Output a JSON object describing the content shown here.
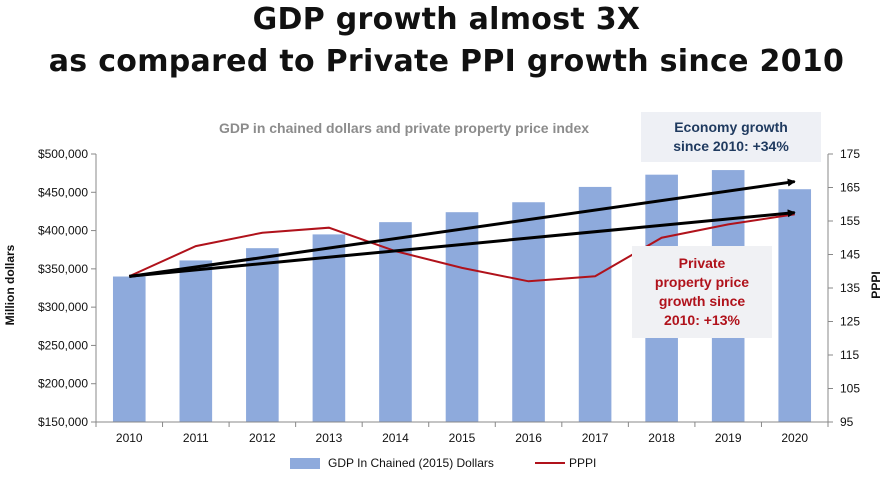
{
  "headline": {
    "line1": "GDP growth almost 3X",
    "line2": "as compared to Private PPI growth since 2010"
  },
  "chart_data": {
    "type": "bar",
    "title": "GDP in chained dollars and private property price index",
    "categories": [
      "2010",
      "2011",
      "2012",
      "2013",
      "2014",
      "2015",
      "2016",
      "2017",
      "2018",
      "2019",
      "2020"
    ],
    "series": [
      {
        "name": "GDP In Chained (2015) Dollars",
        "type": "bar",
        "axis": "left",
        "values": [
          340000,
          361000,
          377000,
          395000,
          411000,
          424000,
          437000,
          457000,
          473000,
          479000,
          454000
        ]
      },
      {
        "name": "PPPI",
        "type": "line",
        "axis": "right",
        "values": [
          138.5,
          147.5,
          151.5,
          153,
          146,
          141,
          137,
          138.5,
          150,
          154,
          157
        ]
      }
    ],
    "ylabel": "Million dollars",
    "ylim": [
      150000,
      500000
    ],
    "yticks": [
      "$500,000",
      "$450,000",
      "$400,000",
      "$350,000",
      "$300,000",
      "$250,000",
      "$200,000",
      "$150,000"
    ],
    "ylabel_right": "PPPI",
    "ylim_right": [
      95,
      175
    ],
    "yticks_right": [
      "175",
      "165",
      "155",
      "145",
      "135",
      "125",
      "115",
      "105",
      "95"
    ],
    "trend_arrows": [
      {
        "target": "GDP",
        "from_x": "2010",
        "from_y": 340000,
        "to_x": "2020",
        "to_y": 464000
      },
      {
        "target": "PPPI",
        "from_x": "2010",
        "from_y": 138.5,
        "to_x": "2020",
        "to_y": 157.5
      }
    ],
    "annotations": {
      "economy": [
        "Economy growth",
        "since 2010: +34%"
      ],
      "ppi": [
        "Private",
        "property price",
        "growth since",
        "2010: +13%"
      ]
    },
    "legend_position": "bottom",
    "grid": false
  },
  "colors": {
    "bar": "#8eaadc",
    "ppi_line": "#b0121b",
    "arrow": "#000000",
    "economy_text": "#1f3a5f",
    "ppi_text": "#b0121b"
  }
}
